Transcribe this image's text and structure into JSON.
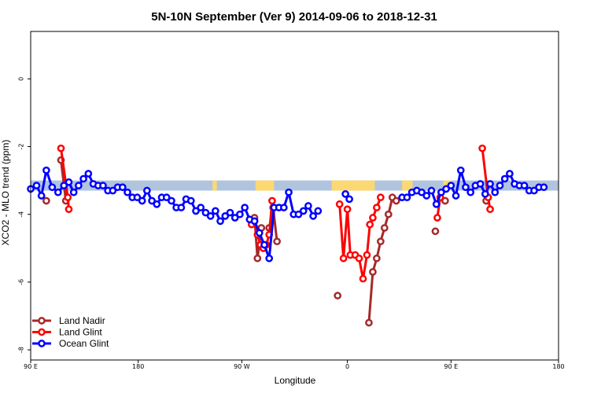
{
  "chart_data": {
    "type": "line",
    "title": "5N-10N September (Ver 9)   2014-09-06 to 2018-12-31",
    "xlabel": "Longitude",
    "ylabel": "XCO2 - MLO trend (ppm)",
    "xlim": [
      -90,
      180
    ],
    "ylim": [
      -8.3,
      1.4
    ],
    "x_ticks": [
      {
        "value": -90,
        "label": "90 E"
      },
      {
        "value": -35,
        "label": "180"
      },
      {
        "value": 18,
        "label": "90 W"
      },
      {
        "value": 72,
        "label": "0"
      },
      {
        "value": 125,
        "label": "90 E"
      },
      {
        "value": 180,
        "label": "180"
      }
    ],
    "y_ticks": [
      {
        "value": 0,
        "label": "0"
      },
      {
        "value": -2,
        "label": "-2"
      },
      {
        "value": -4,
        "label": "-4"
      },
      {
        "value": -6,
        "label": "-6"
      },
      {
        "value": -8,
        "label": "-8"
      }
    ],
    "background_band": {
      "y_range": [
        -3.3,
        -3.0
      ],
      "land_color": "#fcd873",
      "ocean_color": "#b0c4de",
      "land_segments": [
        [
          3.0,
          5.2
        ],
        [
          25.0,
          34.5
        ],
        [
          64.0,
          86.0
        ],
        [
          100.0,
          105.3
        ],
        [
          121.0,
          125.3
        ]
      ]
    },
    "legend_position": "bottom-left",
    "series": [
      {
        "name": "Land Nadir",
        "color": "#a52a2a",
        "segments": [
          [
            [
              -82,
              -3.6
            ]
          ],
          [
            [
              -74.5,
              -2.4
            ],
            [
              -72,
              -3.6
            ]
          ],
          [
            [
              24.5,
              -4.1
            ],
            [
              26,
              -5.3
            ],
            [
              28,
              -4.4
            ]
          ],
          [
            [
              32,
              -4.4
            ],
            [
              34,
              -3.8
            ],
            [
              36,
              -4.8
            ]
          ],
          [
            [
              67,
              -6.4
            ]
          ],
          [
            [
              83,
              -7.2
            ],
            [
              85,
              -5.7
            ],
            [
              87,
              -5.3
            ],
            [
              89,
              -4.8
            ],
            [
              91,
              -4.4
            ],
            [
              93,
              -4.0
            ],
            [
              95,
              -3.5
            ],
            [
              97,
              -3.6
            ]
          ],
          [
            [
              117,
              -4.5
            ]
          ],
          [
            [
              122,
              -3.6
            ]
          ],
          [
            [
              143,
              -3.6
            ]
          ]
        ]
      },
      {
        "name": "Land Glint",
        "color": "#ff0000",
        "segments": [
          [
            [
              -74.5,
              -2.05
            ],
            [
              -71,
              -3.5
            ],
            [
              -70.5,
              -3.85
            ]
          ],
          [
            [
              23,
              -4.3
            ],
            [
              24.5,
              -4.2
            ],
            [
              26,
              -4.6
            ],
            [
              27.5,
              -4.9
            ],
            [
              29,
              -5.0
            ],
            [
              30.5,
              -4.9
            ],
            [
              32,
              -4.6
            ],
            [
              33.5,
              -3.6
            ]
          ],
          [
            [
              68,
              -3.7
            ],
            [
              70,
              -5.3
            ],
            [
              72,
              -3.85
            ],
            [
              73.5,
              -5.2
            ],
            [
              76,
              -5.2
            ],
            [
              78,
              -5.3
            ],
            [
              80,
              -5.9
            ],
            [
              82,
              -5.2
            ],
            [
              83.5,
              -4.3
            ],
            [
              85,
              -4.1
            ],
            [
              87,
              -3.8
            ],
            [
              89,
              -3.5
            ]
          ],
          [
            [
              118,
              -4.1
            ],
            [
              119.5,
              -3.5
            ]
          ],
          [
            [
              141,
              -2.05
            ],
            [
              144,
              -3.5
            ],
            [
              145,
              -3.85
            ]
          ]
        ]
      },
      {
        "name": "Ocean Glint",
        "color": "#0000ff",
        "segments": [
          [
            [
              -90,
              -3.25
            ],
            [
              -87,
              -3.15
            ],
            [
              -84.5,
              -3.45
            ],
            [
              -82,
              -2.7
            ],
            [
              -79,
              -3.2
            ],
            [
              -76,
              -3.35
            ],
            [
              -73,
              -3.15
            ],
            [
              -70.5,
              -3.05
            ],
            [
              -68,
              -3.35
            ],
            [
              -65.5,
              -3.15
            ],
            [
              -63,
              -2.95
            ],
            [
              -60.5,
              -2.8
            ],
            [
              -58,
              -3.1
            ],
            [
              -55.5,
              -3.15
            ],
            [
              -53,
              -3.15
            ],
            [
              -50.5,
              -3.3
            ],
            [
              -48,
              -3.3
            ],
            [
              -45.5,
              -3.2
            ],
            [
              -43,
              -3.2
            ],
            [
              -40.5,
              -3.35
            ],
            [
              -38,
              -3.5
            ],
            [
              -35.5,
              -3.5
            ],
            [
              -33,
              -3.6
            ],
            [
              -30.5,
              -3.3
            ],
            [
              -28,
              -3.6
            ],
            [
              -25.5,
              -3.7
            ],
            [
              -23,
              -3.5
            ],
            [
              -20.5,
              -3.5
            ],
            [
              -18,
              -3.6
            ],
            [
              -15.5,
              -3.8
            ],
            [
              -13,
              -3.8
            ],
            [
              -10.5,
              -3.55
            ],
            [
              -8,
              -3.6
            ],
            [
              -5.5,
              -3.9
            ],
            [
              -3,
              -3.8
            ],
            [
              -0.5,
              -3.95
            ],
            [
              2,
              -4.05
            ],
            [
              4.5,
              -3.9
            ],
            [
              7,
              -4.2
            ],
            [
              9.5,
              -4.05
            ],
            [
              12,
              -3.95
            ],
            [
              14.5,
              -4.1
            ],
            [
              17,
              -4.0
            ],
            [
              19.5,
              -3.8
            ],
            [
              22,
              -4.15
            ],
            [
              24.5,
              -4.2
            ],
            [
              27,
              -4.55
            ],
            [
              29.5,
              -4.9
            ],
            [
              32,
              -5.3
            ],
            [
              34.5,
              -3.8
            ],
            [
              37,
              -3.8
            ],
            [
              39.5,
              -3.8
            ],
            [
              42,
              -3.35
            ],
            [
              44.5,
              -4.0
            ],
            [
              47,
              -4.0
            ],
            [
              49.5,
              -3.9
            ],
            [
              52,
              -3.75
            ],
            [
              54.5,
              -4.05
            ],
            [
              57,
              -3.9
            ]
          ],
          [
            [
              71,
              -3.4
            ],
            [
              73,
              -3.55
            ]
          ],
          [
            [
              100,
              -3.5
            ],
            [
              102.5,
              -3.5
            ],
            [
              105,
              -3.35
            ],
            [
              107.5,
              -3.3
            ],
            [
              110,
              -3.35
            ],
            [
              112.5,
              -3.45
            ],
            [
              115,
              -3.3
            ],
            [
              117.5,
              -3.7
            ],
            [
              120,
              -3.35
            ],
            [
              122.5,
              -3.25
            ],
            [
              125,
              -3.15
            ],
            [
              127.5,
              -3.45
            ],
            [
              130,
              -2.7
            ],
            [
              132.5,
              -3.2
            ],
            [
              135,
              -3.35
            ],
            [
              137.5,
              -3.15
            ],
            [
              140,
              -3.1
            ],
            [
              142.5,
              -3.4
            ],
            [
              145,
              -3.1
            ],
            [
              147.5,
              -3.35
            ],
            [
              150,
              -3.15
            ],
            [
              152.5,
              -2.95
            ],
            [
              155,
              -2.8
            ],
            [
              157.5,
              -3.1
            ],
            [
              160,
              -3.15
            ],
            [
              162.5,
              -3.15
            ],
            [
              165,
              -3.3
            ],
            [
              167.5,
              -3.3
            ],
            [
              170,
              -3.2
            ],
            [
              172.5,
              -3.2
            ]
          ]
        ]
      }
    ]
  }
}
